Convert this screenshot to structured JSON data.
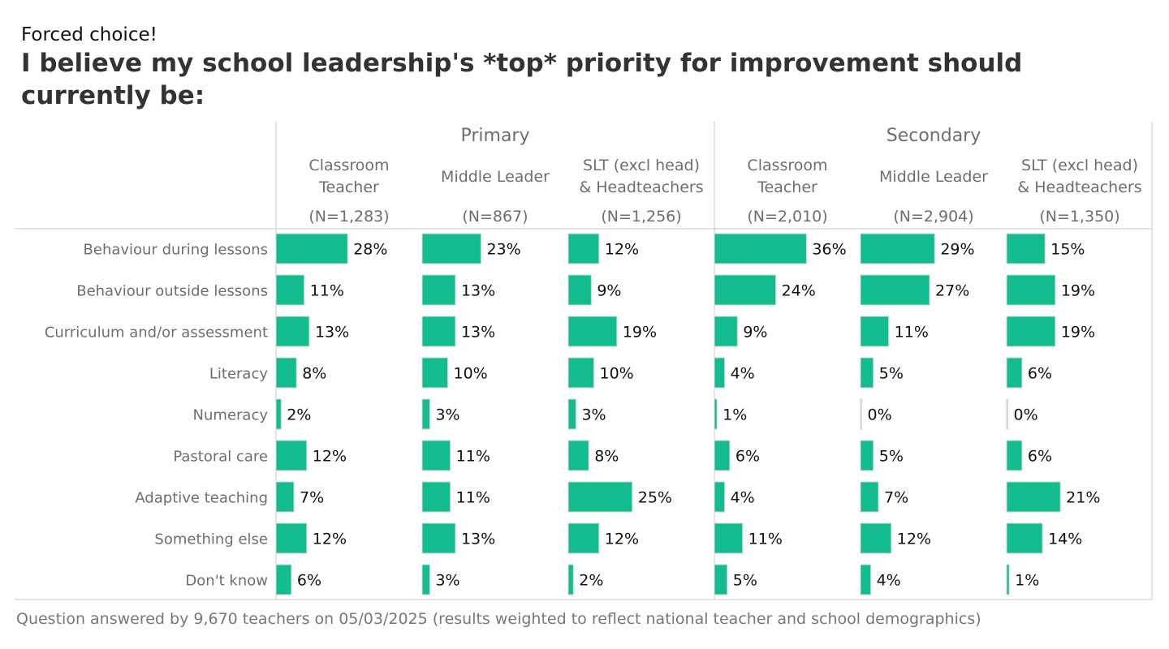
{
  "header": {
    "pretitle": "Forced choice!",
    "title": "I believe my school leadership's *top* priority for improvement should currently be:"
  },
  "footnote": "Question answered by 9,670 teachers on 05/03/2025 (results weighted to reflect national teacher and school demographics)",
  "colors": {
    "bar": "#12bc8f",
    "bar_stroke": "#cfd8d4",
    "grid": "#d2d2d2",
    "header_text": "#6e6e6e",
    "value_text": "#111111"
  },
  "chart_data": {
    "type": "bar",
    "orientation": "horizontal",
    "value_suffix": "%",
    "categories": [
      "Behaviour during lessons",
      "Behaviour outside lessons",
      "Curriculum and/or assessment",
      "Literacy",
      "Numeracy",
      "Pastoral care",
      "Adaptive teaching",
      "Something else",
      "Don't know"
    ],
    "groups": [
      {
        "name": "Primary",
        "series_indices": [
          0,
          1,
          2
        ]
      },
      {
        "name": "Secondary",
        "series_indices": [
          3,
          4,
          5
        ]
      }
    ],
    "series": [
      {
        "name": [
          "Classroom",
          "Teacher"
        ],
        "n": "(N=1,283)",
        "values": [
          28,
          11,
          13,
          8,
          2,
          12,
          7,
          12,
          6
        ]
      },
      {
        "name": [
          "Middle Leader"
        ],
        "n": "(N=867)",
        "values": [
          23,
          13,
          13,
          10,
          3,
          11,
          11,
          13,
          3
        ]
      },
      {
        "name": [
          "SLT (excl head)",
          "& Headteachers"
        ],
        "n": "(N=1,256)",
        "values": [
          12,
          9,
          19,
          10,
          3,
          8,
          25,
          12,
          2
        ]
      },
      {
        "name": [
          "Classroom",
          "Teacher"
        ],
        "n": "(N=2,010)",
        "values": [
          36,
          24,
          9,
          4,
          1,
          6,
          4,
          11,
          5
        ]
      },
      {
        "name": [
          "Middle Leader"
        ],
        "n": "(N=2,904)",
        "values": [
          29,
          27,
          11,
          5,
          0,
          5,
          7,
          12,
          4
        ]
      },
      {
        "name": [
          "SLT (excl head)",
          "& Headteachers"
        ],
        "n": "(N=1,350)",
        "values": [
          15,
          19,
          19,
          6,
          0,
          6,
          21,
          14,
          1
        ]
      }
    ],
    "xlim": [
      0,
      36
    ],
    "grid": true,
    "legend": "none"
  }
}
